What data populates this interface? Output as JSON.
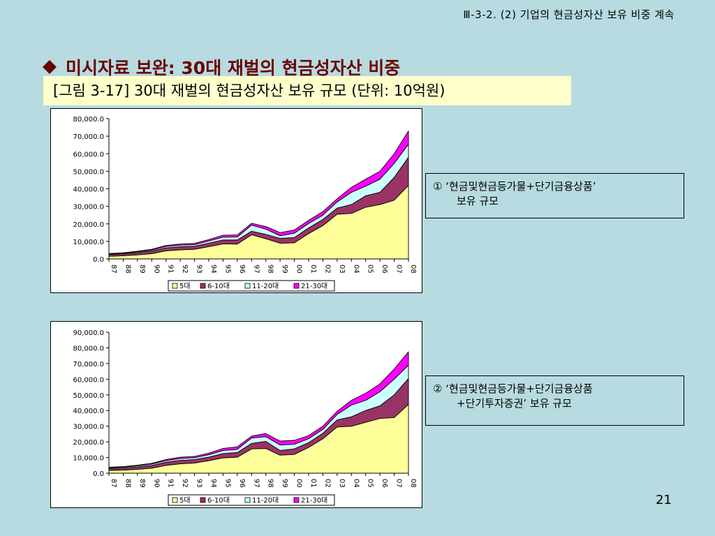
{
  "header": {
    "ref": "Ⅲ-3-2. (2) 기업의 현금성자산 보유 비중 계속"
  },
  "title": {
    "text": "미시자료 보완: 30대 재벌의 현금성자산 비중"
  },
  "caption": {
    "text": "[그림 3-17] 30대 재벌의 현금성자산 보유 규모 (단위: 10억원)"
  },
  "notes": [
    {
      "line1": "① ‘현금및현금등가물+단기금융상품’",
      "line2": "보유 규모"
    },
    {
      "line1": "② ‘현금및현금등가물+단기금융상품",
      "line2": "+단기투자증권’ 보유 규모"
    }
  ],
  "page_number": "21",
  "colors": {
    "title": "#6b0000",
    "s5": "#ffff99",
    "s6_10": "#993366",
    "s11_20": "#ccffff",
    "s21_30": "#ff00ff"
  },
  "chart_data": [
    {
      "type": "area",
      "stacked": true,
      "title": "",
      "ylim": [
        0,
        80000
      ],
      "yticks": [
        "80,000.0",
        "70,000.0",
        "60,000.0",
        "50,000.0",
        "40,000.0",
        "30,000.0",
        "20,000.0",
        "10,000.0",
        "0.0"
      ],
      "categories": [
        "87",
        "88",
        "89",
        "90",
        "91",
        "92",
        "93",
        "94",
        "95",
        "96",
        "97",
        "98",
        "99",
        "00",
        "01",
        "02",
        "03",
        "04",
        "05",
        "06",
        "07",
        "08"
      ],
      "series": [
        {
          "name": "5대",
          "values": [
            1500,
            1800,
            2300,
            3000,
            4600,
            5200,
            5500,
            7000,
            8600,
            8500,
            13800,
            11500,
            9000,
            9200,
            14500,
            19000,
            25500,
            26000,
            29500,
            31000,
            33500,
            42000
          ]
        },
        {
          "name": "6-10대",
          "values": [
            1000,
            1100,
            1300,
            1500,
            1700,
            1800,
            1800,
            2000,
            2200,
            2300,
            2000,
            2500,
            2700,
            3000,
            3200,
            3500,
            3500,
            5000,
            6500,
            7000,
            13000,
            16000
          ]
        },
        {
          "name": "11-20대",
          "values": [
            400,
            400,
            500,
            600,
            800,
            900,
            900,
            1200,
            1600,
            1700,
            3500,
            3000,
            1500,
            2500,
            2500,
            2500,
            3500,
            7000,
            5500,
            7500,
            8000,
            7500
          ]
        },
        {
          "name": "21-30대",
          "values": [
            200,
            200,
            300,
            400,
            600,
            600,
            700,
            800,
            1100,
            1200,
            1000,
            1500,
            1800,
            1800,
            1800,
            2000,
            1800,
            2800,
            4000,
            4500,
            5500,
            7500
          ]
        }
      ]
    },
    {
      "type": "area",
      "stacked": true,
      "title": "",
      "ylim": [
        0,
        90000
      ],
      "yticks": [
        "90,000.0",
        "80,000.0",
        "70,000.0",
        "60,000.0",
        "50,000.0",
        "40,000.0",
        "30,000.0",
        "20,000.0",
        "10,000.0",
        "0.0"
      ],
      "categories": [
        "87",
        "88",
        "89",
        "90",
        "91",
        "92",
        "93",
        "94",
        "95",
        "96",
        "97",
        "98",
        "99",
        "00",
        "01",
        "02",
        "03",
        "04",
        "05",
        "06",
        "07",
        "08"
      ],
      "series": [
        {
          "name": "5대",
          "values": [
            1800,
            2000,
            2500,
            3200,
            5000,
            6000,
            6500,
            8000,
            9800,
            10200,
            15500,
            15800,
            11500,
            12000,
            16500,
            22000,
            29500,
            30000,
            32500,
            35000,
            35500,
            44000
          ]
        },
        {
          "name": "6-10대",
          "values": [
            1200,
            1300,
            1500,
            1800,
            2000,
            2200,
            2200,
            2300,
            2700,
            3000,
            3500,
            4500,
            3000,
            3500,
            3000,
            3500,
            4500,
            6000,
            7500,
            8000,
            14500,
            16500
          ]
        },
        {
          "name": "11-20대",
          "values": [
            500,
            600,
            700,
            800,
            1000,
            1200,
            1200,
            1500,
            2000,
            2000,
            3500,
            3000,
            3500,
            3000,
            2500,
            2500,
            3500,
            7500,
            6500,
            9000,
            10000,
            8500
          ]
        },
        {
          "name": "21-30대",
          "values": [
            300,
            300,
            400,
            500,
            700,
            800,
            800,
            1000,
            1300,
            1600,
            1200,
            2000,
            2500,
            2500,
            2000,
            2000,
            2000,
            3000,
            4500,
            5000,
            6500,
            8500
          ]
        }
      ]
    }
  ]
}
